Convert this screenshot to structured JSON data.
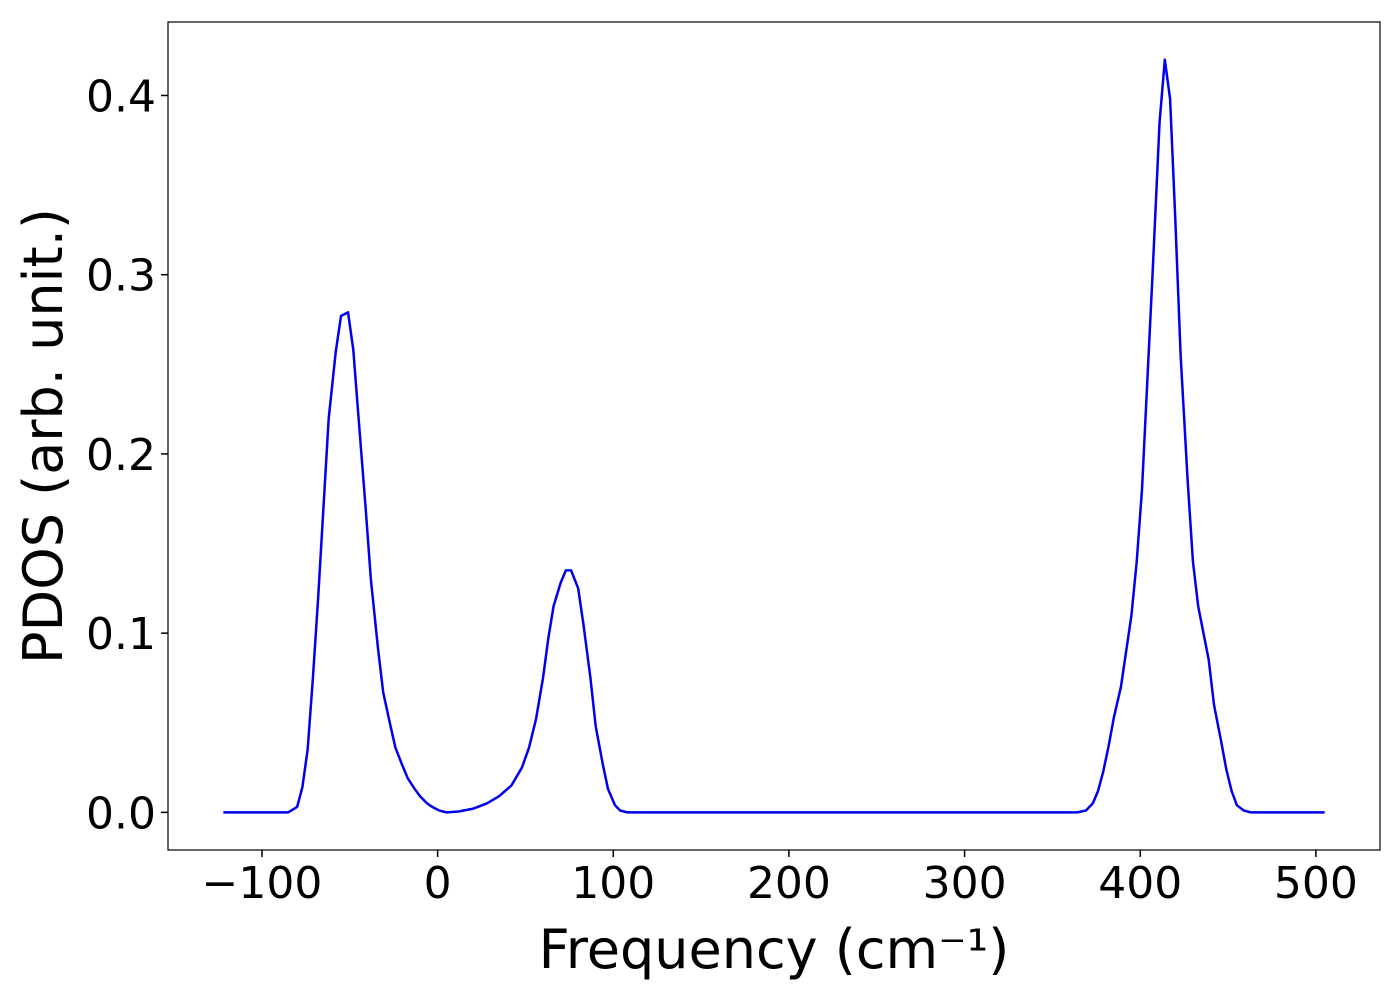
{
  "chart_data": {
    "type": "line",
    "xlabel": "Frequency (cm⁻¹)",
    "ylabel": "PDOS (arb. unit.)",
    "x": [
      -122,
      -85,
      -80,
      -77,
      -74,
      -71,
      -68,
      -65,
      -62,
      -58,
      -55,
      -51,
      -48,
      -45,
      -41,
      -38,
      -34,
      -31,
      -27,
      -24,
      -20,
      -17,
      -13,
      -10,
      -6,
      -3,
      1,
      5,
      12,
      20,
      28,
      35,
      42,
      48,
      52,
      56,
      60,
      63,
      66,
      70,
      73,
      76,
      80,
      83,
      87,
      90,
      94,
      97,
      101,
      104,
      108,
      364,
      369,
      373,
      376,
      379,
      382,
      385,
      389,
      392,
      395,
      398,
      401,
      404,
      407,
      411,
      414,
      417,
      420,
      423,
      427,
      430,
      433,
      439,
      442,
      446,
      449,
      452,
      455,
      459,
      463,
      505
    ],
    "series": [
      {
        "name": "PDOS",
        "color": "#0000ee",
        "values": [
          0,
          0,
          0.003,
          0.014,
          0.035,
          0.075,
          0.12,
          0.17,
          0.22,
          0.257,
          0.277,
          0.279,
          0.258,
          0.22,
          0.17,
          0.13,
          0.092,
          0.067,
          0.049,
          0.036,
          0.026,
          0.019,
          0.013,
          0.009,
          0.005,
          0.003,
          0.001,
          0,
          0.0005,
          0.002,
          0.005,
          0.009,
          0.015,
          0.025,
          0.036,
          0.052,
          0.075,
          0.097,
          0.115,
          0.128,
          0.135,
          0.135,
          0.125,
          0.105,
          0.075,
          0.048,
          0.027,
          0.013,
          0.004,
          0.001,
          0,
          0,
          0.001,
          0.005,
          0.012,
          0.023,
          0.037,
          0.053,
          0.07,
          0.09,
          0.11,
          0.14,
          0.18,
          0.24,
          0.3,
          0.385,
          0.42,
          0.398,
          0.33,
          0.255,
          0.185,
          0.14,
          0.115,
          0.085,
          0.06,
          0.04,
          0.024,
          0.012,
          0.004,
          0.001,
          0,
          0
        ]
      }
    ],
    "xlim": [
      -153.5,
      536.5
    ],
    "ylim": [
      -0.021,
      0.441
    ],
    "xticks": [
      {
        "value": -100,
        "label": "−100"
      },
      0,
      100,
      200,
      300,
      400,
      500
    ],
    "yticks": [
      {
        "value": 0,
        "label": "0.0"
      },
      0.1,
      0.2,
      0.3,
      0.4
    ],
    "grid": false
  }
}
